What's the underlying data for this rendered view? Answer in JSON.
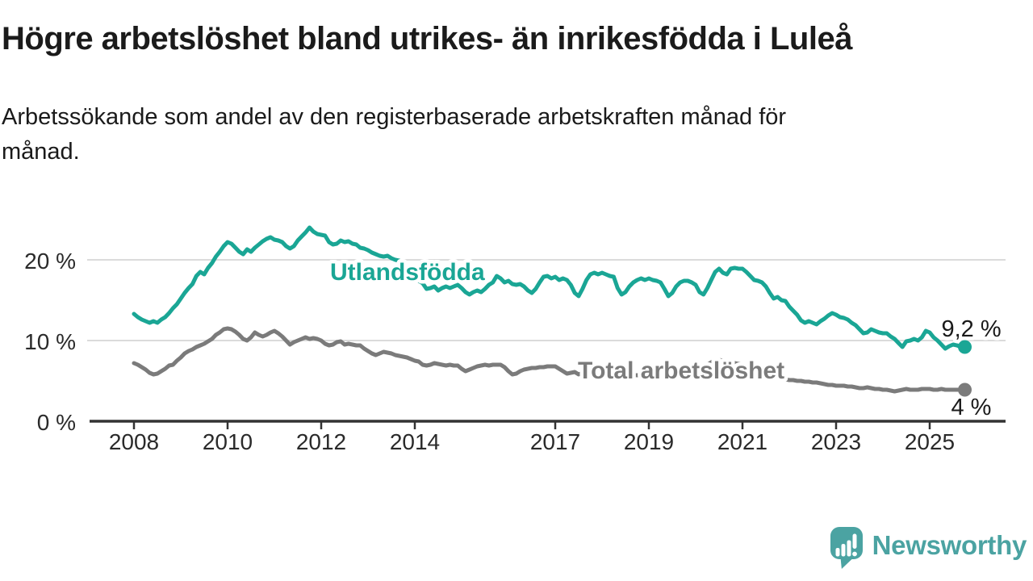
{
  "header": {
    "title": "Högre arbetslöshet bland utrikes- än inrikesfödda i Luleå",
    "subtitle_lines": [
      "Arbetssökande som andel av den registerbaserade arbetskraften månad för",
      "månad."
    ]
  },
  "footer": {
    "brand": "Newsworthy"
  },
  "colors": {
    "series_foreign": "#1AA695",
    "series_total": "#7B7B7B",
    "brand_teal": "#4BA3A2",
    "grid": "#DBDBDB",
    "axis": "#333333",
    "text": "#1A1A1A",
    "tick_text": "#2A2A2A"
  },
  "chart_data": {
    "type": "line",
    "title": "Högre arbetslöshet bland utrikes- än inrikesfödda i Luleå",
    "subtitle": "Arbetssökande som andel av den registerbaserade arbetskraften månad för månad.",
    "x_unit": "month",
    "x_start": "2008-01",
    "x_end": "2025-10",
    "x_tick_years": [
      2008,
      2010,
      2012,
      2014,
      2017,
      2019,
      2021,
      2023,
      2025
    ],
    "y_ticks": [
      {
        "value": 0,
        "label": "0 %"
      },
      {
        "value": 10,
        "label": "10 %"
      },
      {
        "value": 20,
        "label": "20 %"
      }
    ],
    "ylim": [
      0,
      27
    ],
    "grid": true,
    "legend_position": "inline-labels",
    "series": [
      {
        "name": "Utlandsfödda",
        "color": "#1AA695",
        "end_label": "9,2 %",
        "end_value": 9.2,
        "values": [
          13.3,
          12.9,
          12.6,
          12.4,
          12.2,
          12.4,
          12.2,
          12.6,
          12.9,
          13.4,
          14.0,
          14.5,
          15.2,
          15.9,
          16.5,
          17.0,
          18.0,
          18.5,
          18.2,
          19.0,
          19.6,
          20.4,
          21.0,
          21.7,
          22.2,
          22.0,
          21.5,
          21.0,
          20.7,
          21.3,
          21.0,
          21.5,
          21.9,
          22.3,
          22.6,
          22.8,
          22.5,
          22.4,
          22.2,
          21.7,
          21.4,
          21.7,
          22.4,
          22.9,
          23.4,
          24.0,
          23.5,
          23.2,
          23.1,
          23.0,
          22.2,
          21.9,
          22.0,
          22.4,
          22.2,
          22.3,
          22.0,
          21.9,
          21.5,
          21.4,
          21.2,
          20.9,
          20.7,
          20.5,
          20.4,
          20.5,
          20.2,
          20.0,
          19.9,
          19.4,
          18.8,
          18.3,
          17.8,
          17.4,
          17.1,
          16.4,
          16.5,
          16.7,
          16.2,
          16.5,
          16.7,
          16.5,
          16.7,
          16.9,
          16.5,
          16.0,
          15.7,
          16.0,
          16.2,
          16.0,
          16.4,
          16.9,
          17.2,
          18.0,
          17.7,
          17.2,
          17.4,
          17.0,
          16.9,
          17.0,
          16.7,
          16.2,
          15.9,
          16.4,
          17.2,
          17.9,
          18.0,
          17.7,
          17.9,
          17.5,
          17.7,
          17.5,
          16.9,
          15.9,
          15.5,
          16.4,
          17.5,
          18.2,
          18.4,
          18.2,
          18.4,
          18.2,
          18.0,
          17.9,
          16.5,
          15.7,
          16.0,
          16.7,
          17.2,
          17.5,
          17.7,
          17.5,
          17.7,
          17.5,
          17.4,
          17.2,
          16.4,
          15.5,
          15.9,
          16.7,
          17.2,
          17.4,
          17.4,
          17.2,
          16.9,
          16.0,
          15.7,
          16.5,
          17.5,
          18.5,
          18.9,
          18.4,
          18.2,
          18.9,
          19.0,
          18.9,
          18.9,
          18.5,
          18.0,
          17.5,
          17.4,
          17.2,
          16.7,
          15.9,
          15.2,
          15.4,
          15.0,
          14.9,
          14.2,
          13.7,
          13.2,
          12.5,
          12.2,
          12.4,
          12.2,
          12.0,
          12.4,
          12.7,
          13.1,
          13.4,
          13.2,
          12.9,
          12.8,
          12.6,
          12.2,
          11.9,
          11.4,
          10.9,
          11.0,
          11.4,
          11.2,
          11.0,
          10.9,
          10.9,
          10.5,
          10.2,
          9.7,
          9.2,
          9.9,
          10.0,
          10.2,
          10.0,
          10.4,
          11.2,
          11.0,
          10.4,
          10.0,
          9.5,
          9.0,
          9.3,
          9.5,
          9.4,
          9.2,
          9.2
        ]
      },
      {
        "name": "Total arbetslöshet",
        "color": "#7B7B7B",
        "end_label": "4 %",
        "end_value": 4.0,
        "values": [
          7.2,
          7.0,
          6.7,
          6.4,
          6.0,
          5.8,
          5.9,
          6.2,
          6.5,
          6.9,
          7.0,
          7.5,
          7.9,
          8.4,
          8.7,
          8.9,
          9.2,
          9.4,
          9.6,
          9.9,
          10.2,
          10.7,
          11.0,
          11.4,
          11.5,
          11.4,
          11.1,
          10.7,
          10.2,
          10.0,
          10.4,
          11.0,
          10.7,
          10.5,
          10.7,
          11.0,
          11.2,
          10.9,
          10.5,
          10.0,
          9.5,
          9.8,
          10.0,
          10.2,
          10.4,
          10.2,
          10.3,
          10.2,
          10.0,
          9.6,
          9.4,
          9.5,
          9.8,
          9.9,
          9.5,
          9.6,
          9.5,
          9.4,
          9.4,
          9.0,
          8.7,
          8.4,
          8.2,
          8.4,
          8.6,
          8.5,
          8.4,
          8.2,
          8.1,
          8.0,
          7.9,
          7.7,
          7.5,
          7.4,
          7.0,
          6.9,
          7.0,
          7.2,
          7.1,
          7.0,
          6.9,
          7.0,
          6.9,
          6.9,
          6.5,
          6.2,
          6.4,
          6.6,
          6.8,
          6.9,
          7.0,
          6.9,
          7.0,
          7.0,
          7.0,
          6.7,
          6.2,
          5.8,
          5.9,
          6.2,
          6.4,
          6.5,
          6.6,
          6.6,
          6.7,
          6.7,
          6.8,
          6.8,
          6.8,
          6.5,
          6.2,
          5.9,
          6.0,
          6.1,
          5.8,
          6.0,
          6.1,
          6.2,
          6.2,
          6.2,
          6.1,
          6.0,
          5.9,
          5.7,
          5.5,
          5.4,
          5.5,
          5.6,
          5.7,
          5.7,
          5.7,
          5.8,
          5.8,
          5.7,
          5.6,
          5.5,
          5.4,
          5.5,
          5.6,
          5.8,
          5.9,
          6.0,
          6.1,
          6.2,
          6.3,
          6.3,
          6.5,
          7.0,
          7.3,
          7.5,
          7.6,
          7.5,
          7.4,
          7.3,
          7.2,
          7.1,
          7.0,
          6.8,
          6.6,
          6.4,
          6.2,
          6.0,
          5.8,
          5.6,
          5.5,
          5.4,
          5.3,
          5.2,
          5.1,
          5.1,
          5.0,
          5.0,
          4.9,
          4.9,
          4.8,
          4.8,
          4.7,
          4.6,
          4.5,
          4.5,
          4.4,
          4.4,
          4.4,
          4.3,
          4.3,
          4.2,
          4.1,
          4.1,
          4.2,
          4.1,
          4.0,
          4.0,
          3.9,
          3.9,
          3.8,
          3.7,
          3.8,
          3.9,
          4.0,
          3.9,
          3.9,
          3.9,
          4.0,
          4.0,
          4.0,
          3.9,
          3.9,
          4.0,
          3.9,
          3.9,
          3.9,
          3.9,
          3.9,
          3.9
        ]
      }
    ]
  }
}
